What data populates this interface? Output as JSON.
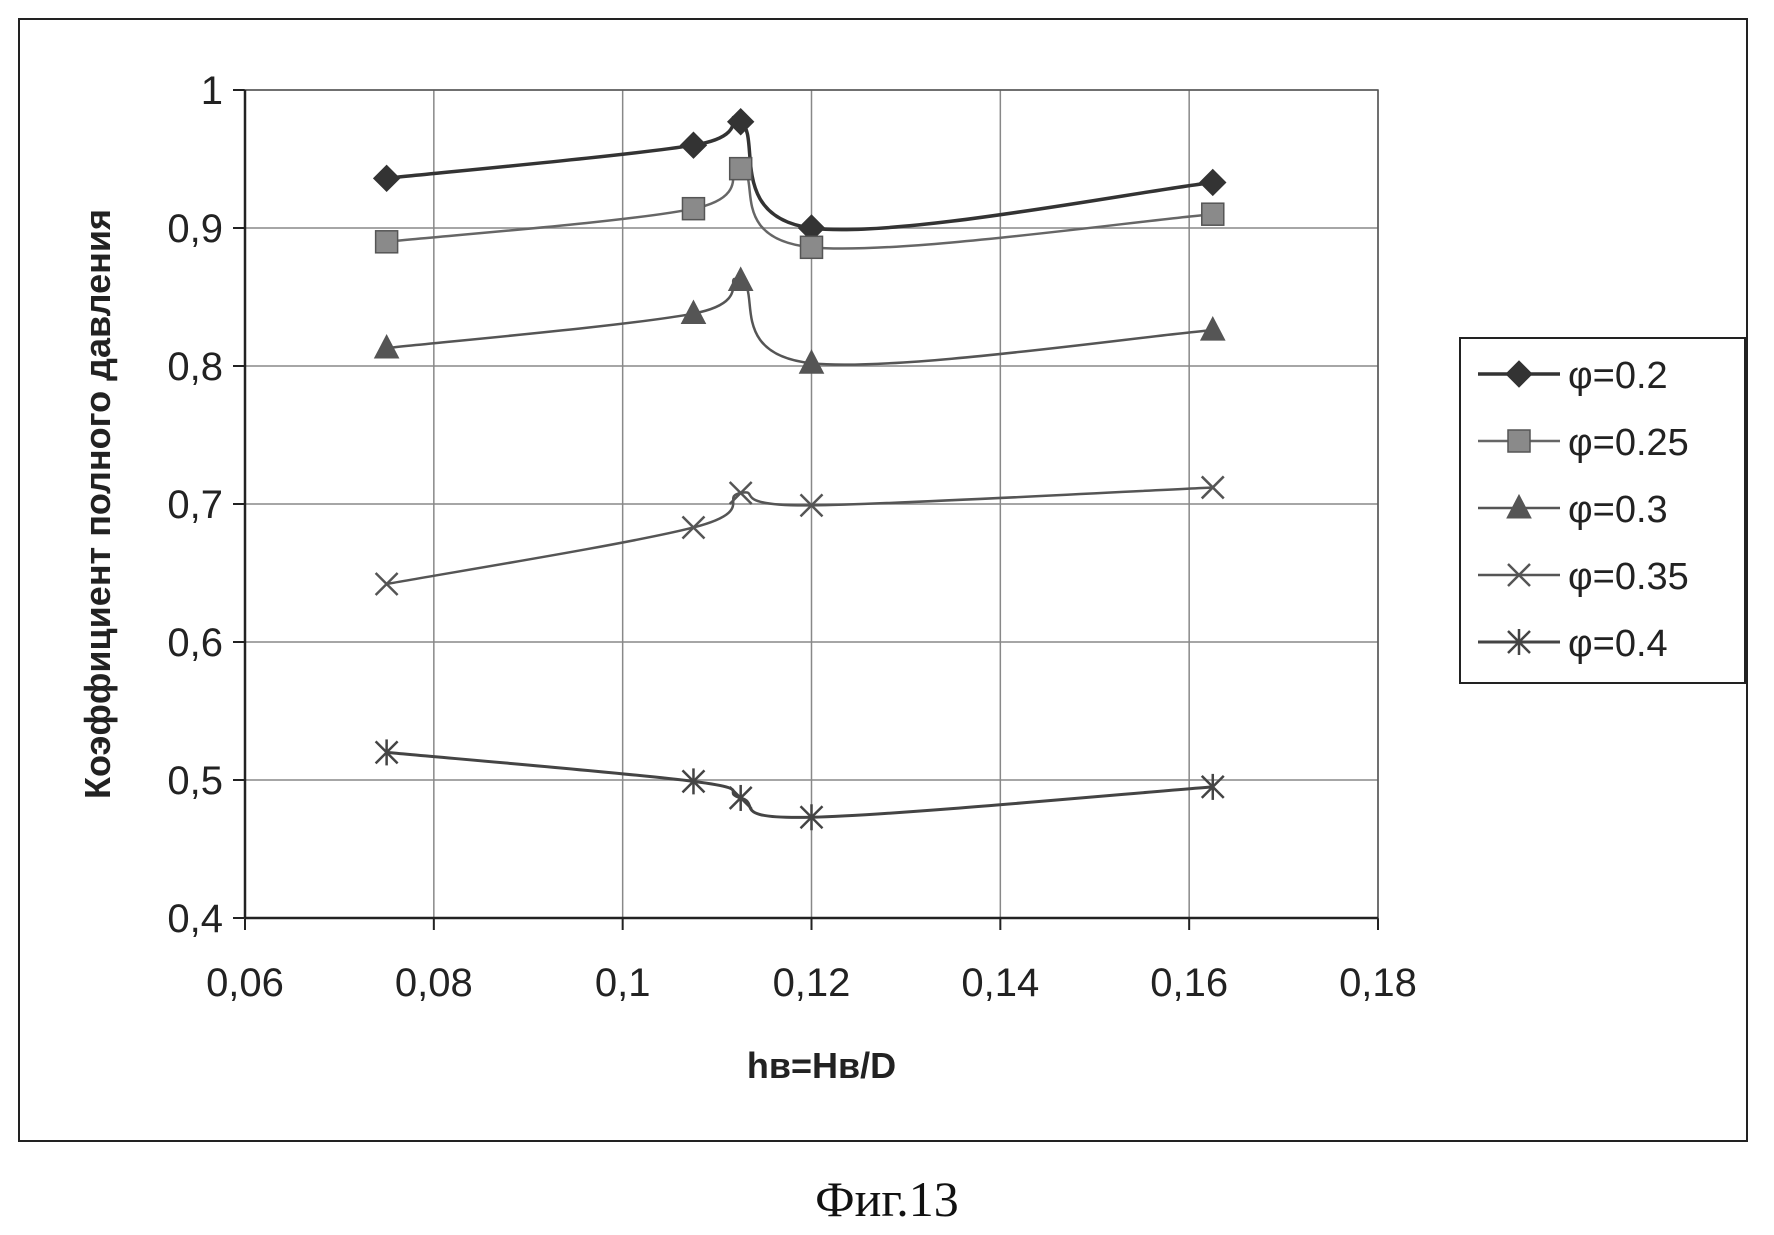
{
  "figure_caption": "Фиг.13",
  "chart_data": {
    "type": "line",
    "title": "",
    "xlabel": "hв=Hв/D",
    "ylabel": "Коэффициент полного давления",
    "xlim": [
      0.06,
      0.18
    ],
    "ylim": [
      0.4,
      1.0
    ],
    "x_ticks": [
      "0,06",
      "0,08",
      "0,1",
      "0,12",
      "0,14",
      "0,16",
      "0,18"
    ],
    "y_ticks": [
      "0,4",
      "0,5",
      "0,6",
      "0,7",
      "0,8",
      "0,9",
      "1"
    ],
    "grid": true,
    "legend_position": "right",
    "x": [
      0.075,
      0.1075,
      0.1125,
      0.12,
      0.1625
    ],
    "series": [
      {
        "name": "φ=0.2",
        "marker": "diamond",
        "color": "#333333",
        "values": [
          0.936,
          0.96,
          0.977,
          0.9,
          0.933
        ]
      },
      {
        "name": "φ=0.25",
        "marker": "square",
        "color": "#666666",
        "values": [
          0.89,
          0.914,
          0.943,
          0.886,
          0.91
        ]
      },
      {
        "name": "φ=0.3",
        "marker": "triangle",
        "color": "#555555",
        "values": [
          0.813,
          0.838,
          0.862,
          0.802,
          0.826
        ]
      },
      {
        "name": "φ=0.35",
        "marker": "x",
        "color": "#555555",
        "values": [
          0.642,
          0.683,
          0.708,
          0.699,
          0.712
        ]
      },
      {
        "name": "φ=0.4",
        "marker": "star",
        "color": "#444444",
        "values": [
          0.52,
          0.499,
          0.487,
          0.473,
          0.495
        ]
      }
    ]
  }
}
